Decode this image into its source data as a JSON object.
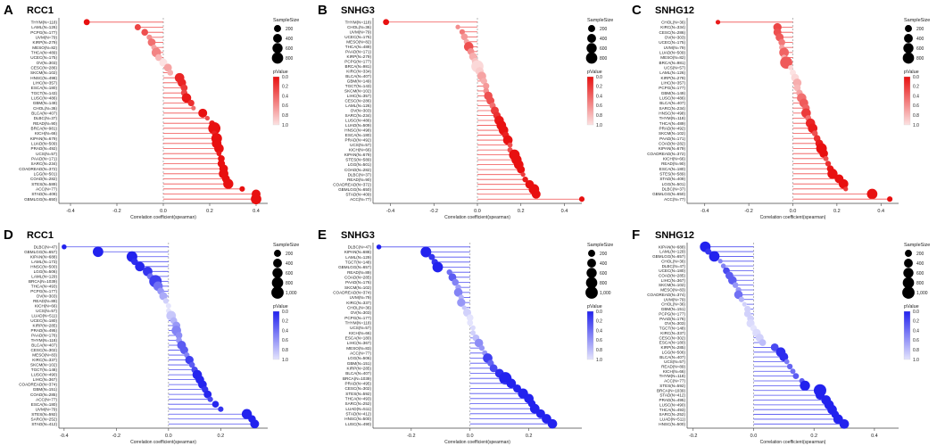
{
  "figure": {
    "description_title": "Lollipop correlation plots of RCC1, SNHG3 and SNHG12 across TCGA cancer types",
    "colors": {
      "red": "#e81010",
      "blue": "#2222ee",
      "stem_red": "#f05050",
      "stem_blue": "#5050f0"
    }
  },
  "chart_data": [
    {
      "panel_letter": "A",
      "title": "RCC1",
      "type": "lollipop",
      "color": "red",
      "xlabel": "Correlation coefficient(spearman)",
      "xlim": [
        -0.45,
        0.45
      ],
      "xticks": [
        -0.4,
        -0.2,
        0.0,
        0.2,
        0.4
      ],
      "xtick_labels": [
        "-0.4",
        "-0.2",
        "0.0",
        "0.2",
        "0.4"
      ],
      "legend_size_title": "SampleSize",
      "legend_size_labels": [
        "200",
        "400",
        "600",
        "800"
      ],
      "legend_p_title": "pValue",
      "legend_p_labels": [
        "0.0",
        "0.2",
        "0.4",
        "0.6",
        "0.8",
        "1.0"
      ],
      "labels": [
        "THYM(N=118)",
        "LAML(N=126)",
        "PCPG(N=177)",
        "UVM(N=79)",
        "KIRP(N=279)",
        "MESO(N=82)",
        "THCA(N=489)",
        "UCEC(N=175)",
        "OV(N=303)",
        "CESC(N=286)",
        "SKCM(N=102)",
        "HNSC(N=498)",
        "LIHC(N=357)",
        "ESCA(N=180)",
        "TGCT(N=143)",
        "LUSC(N=486)",
        "GBM(N=149)",
        "CHOL(N=36)",
        "BLCA(N=407)",
        "DLBC(N=37)",
        "READ(N=90)",
        "BRCA(N=981)",
        "KICH(N=66)",
        "KIPAN(N=679)",
        "LUAD(N=509)",
        "PRAD(N=492)",
        "UCS(N=57)",
        "PAAD(N=171)",
        "SARC(N=234)",
        "COADREAD(N=372)",
        "LGG(N=501)",
        "COAD(N=282)",
        "STES(N=589)",
        "ACC(N=77)",
        "STAD(N=409)",
        "GBMLGG(N=650)"
      ],
      "values": [
        -0.33,
        -0.11,
        -0.08,
        -0.06,
        -0.05,
        -0.04,
        -0.03,
        -0.02,
        0.0,
        0.02,
        0.03,
        0.07,
        0.08,
        0.09,
        0.09,
        0.1,
        0.12,
        0.13,
        0.17,
        0.19,
        0.21,
        0.22,
        0.22,
        0.23,
        0.23,
        0.24,
        0.24,
        0.25,
        0.25,
        0.26,
        0.26,
        0.27,
        0.28,
        0.34,
        0.4,
        0.4
      ],
      "sizes": [
        118,
        126,
        177,
        79,
        279,
        82,
        489,
        175,
        303,
        286,
        102,
        498,
        357,
        180,
        143,
        486,
        149,
        36,
        407,
        37,
        90,
        981,
        66,
        679,
        509,
        492,
        57,
        171,
        234,
        372,
        501,
        282,
        589,
        77,
        409,
        650
      ],
      "pvalues": [
        0.0,
        0.25,
        0.3,
        0.6,
        0.45,
        0.7,
        0.55,
        0.8,
        1.0,
        0.7,
        0.75,
        0.1,
        0.1,
        0.2,
        0.25,
        0.03,
        0.15,
        0.45,
        0.0,
        0.3,
        0.05,
        0.0,
        0.08,
        0.0,
        0.0,
        0.0,
        0.05,
        0.0,
        0.0,
        0.0,
        0.0,
        0.0,
        0.0,
        0.0,
        0.0,
        0.0
      ]
    },
    {
      "panel_letter": "B",
      "title": "SNHG3",
      "type": "lollipop",
      "color": "red",
      "xlabel": "Correlation coefficient(spearman)",
      "xlim": [
        -0.48,
        0.48
      ],
      "xticks": [
        -0.4,
        -0.2,
        0.0,
        0.2,
        0.4
      ],
      "xtick_labels": [
        "-0.4",
        "-0.2",
        "0.0",
        "0.2",
        "0.4"
      ],
      "legend_size_title": "SampleSize",
      "legend_size_labels": [
        "200",
        "400",
        "600",
        "800"
      ],
      "legend_p_title": "pValue",
      "legend_p_labels": [
        "0.0",
        "0.2",
        "0.4",
        "0.6",
        "0.8",
        "1.0"
      ],
      "labels": [
        "THYM(N=118)",
        "CHOL(N=36)",
        "UVM(N=79)",
        "UCEC(N=175)",
        "MESO(N=82)",
        "THCA(N=489)",
        "PAAD(N=171)",
        "KIRP(N=279)",
        "PCPG(N=177)",
        "BRCA(N=981)",
        "KIRC(N=334)",
        "BLCA(N=407)",
        "GBM(N=149)",
        "TGCT(N=143)",
        "SKCM(N=102)",
        "LIHC(N=357)",
        "CESC(N=286)",
        "LAML(N=126)",
        "OV(N=303)",
        "SARC(N=234)",
        "LUSC(N=486)",
        "LUAD(N=509)",
        "HNSC(N=498)",
        "ESCA(N=180)",
        "PRAD(N=492)",
        "UCS(N=57)",
        "KICH(N=66)",
        "KIPAN(N=679)",
        "STES(N=589)",
        "LGG(N=501)",
        "COAD(N=282)",
        "DLBC(N=37)",
        "READ(N=90)",
        "COADREAD(N=372)",
        "GBMLGG(N=650)",
        "STAD(N=409)",
        "ACC(N=77)"
      ],
      "values": [
        -0.42,
        -0.09,
        -0.07,
        -0.06,
        -0.05,
        -0.04,
        -0.03,
        -0.02,
        -0.01,
        0.0,
        0.01,
        0.02,
        0.03,
        0.04,
        0.04,
        0.05,
        0.06,
        0.07,
        0.08,
        0.09,
        0.1,
        0.11,
        0.12,
        0.13,
        0.14,
        0.15,
        0.15,
        0.17,
        0.18,
        0.19,
        0.2,
        0.21,
        0.22,
        0.24,
        0.26,
        0.27,
        0.48
      ],
      "sizes": [
        118,
        36,
        79,
        175,
        82,
        489,
        171,
        279,
        177,
        981,
        334,
        407,
        149,
        143,
        102,
        357,
        286,
        126,
        303,
        234,
        486,
        509,
        498,
        180,
        492,
        57,
        66,
        679,
        589,
        501,
        282,
        37,
        90,
        372,
        650,
        409,
        77
      ],
      "pvalues": [
        0.0,
        0.6,
        0.5,
        0.65,
        0.7,
        0.3,
        0.6,
        0.75,
        0.85,
        0.95,
        0.9,
        0.7,
        0.75,
        0.65,
        0.6,
        0.3,
        0.3,
        0.45,
        0.2,
        0.15,
        0.03,
        0.01,
        0.01,
        0.08,
        0.01,
        0.3,
        0.3,
        0.0,
        0.0,
        0.0,
        0.0,
        0.2,
        0.05,
        0.0,
        0.0,
        0.0,
        0.0
      ]
    },
    {
      "panel_letter": "C",
      "title": "SNHG12",
      "type": "lollipop",
      "color": "red",
      "xlabel": "Correlation coefficient(spearman)",
      "xlim": [
        -0.48,
        0.48
      ],
      "xticks": [
        -0.4,
        -0.2,
        0.0,
        0.2,
        0.4
      ],
      "xtick_labels": [
        "-0.4",
        "-0.2",
        "0.0",
        "0.2",
        "0.4"
      ],
      "legend_size_title": "SampleSize",
      "legend_size_labels": [
        "200",
        "400",
        "600",
        "800"
      ],
      "legend_p_title": "pValue",
      "legend_p_labels": [
        "0.0",
        "0.2",
        "0.4",
        "0.6",
        "0.8",
        "1.0"
      ],
      "labels": [
        "CHOL(N=36)",
        "KIRC(N=334)",
        "CESC(N=286)",
        "OV(N=303)",
        "UCEC(N=175)",
        "UVM(N=79)",
        "LUAD(N=509)",
        "MESO(N=82)",
        "BRCA(N=981)",
        "UCS(N=57)",
        "LAML(N=126)",
        "KIRP(N=279)",
        "LIHC(N=357)",
        "PCPG(N=177)",
        "GBM(N=149)",
        "LUSC(N=486)",
        "BLCA(N=407)",
        "SARC(N=234)",
        "HNSC(N=498)",
        "THYM(N=118)",
        "THCA(N=489)",
        "PRAD(N=492)",
        "SKCM(N=102)",
        "PAAD(N=171)",
        "COAD(N=282)",
        "KIPAN(N=679)",
        "COADREAD(N=372)",
        "KICH(N=66)",
        "READ(N=90)",
        "ESCA(N=180)",
        "STES(N=589)",
        "STAD(N=409)",
        "LGG(N=501)",
        "DLBC(N=37)",
        "GBMLGG(N=650)",
        "ACC(N=77)"
      ],
      "values": [
        -0.34,
        -0.07,
        -0.07,
        -0.06,
        -0.05,
        -0.05,
        -0.04,
        -0.04,
        -0.03,
        -0.01,
        0.0,
        0.01,
        0.02,
        0.02,
        0.03,
        0.04,
        0.05,
        0.06,
        0.06,
        0.07,
        0.08,
        0.09,
        0.1,
        0.11,
        0.12,
        0.13,
        0.14,
        0.15,
        0.16,
        0.17,
        0.18,
        0.21,
        0.23,
        0.24,
        0.36,
        0.44
      ],
      "sizes": [
        36,
        334,
        286,
        303,
        175,
        79,
        509,
        82,
        981,
        57,
        126,
        279,
        357,
        177,
        149,
        486,
        407,
        234,
        498,
        118,
        489,
        492,
        102,
        171,
        282,
        679,
        372,
        66,
        90,
        180,
        589,
        409,
        501,
        37,
        650,
        77
      ],
      "pvalues": [
        0.05,
        0.25,
        0.3,
        0.35,
        0.5,
        0.7,
        0.4,
        0.75,
        0.35,
        0.95,
        1.0,
        0.95,
        0.75,
        0.8,
        0.7,
        0.45,
        0.35,
        0.4,
        0.2,
        0.45,
        0.1,
        0.05,
        0.3,
        0.15,
        0.05,
        0.0,
        0.0,
        0.3,
        0.15,
        0.03,
        0.0,
        0.0,
        0.0,
        0.2,
        0.0,
        0.0
      ]
    },
    {
      "panel_letter": "D",
      "title": "RCC1",
      "type": "lollipop",
      "color": "blue",
      "xlabel": "Correlation coefficient(spearman)",
      "xlim": [
        -0.42,
        0.38
      ],
      "xticks": [
        -0.4,
        -0.2,
        0.0,
        0.2
      ],
      "xtick_labels": [
        "-0.4",
        "-0.2",
        "0.0",
        "0.2"
      ],
      "legend_size_title": "SampleSize",
      "legend_size_labels": [
        "200",
        "400",
        "600",
        "800",
        "1,000"
      ],
      "legend_p_title": "pValue",
      "legend_p_labels": [
        "0.0",
        "0.2",
        "0.4",
        "0.6",
        "0.8",
        "1.0"
      ],
      "labels": [
        "DLBC(N=47)",
        "GBMLGG(N=657)",
        "KIPAN(N=688)",
        "LAML(N=173)",
        "HNSC(N=500)",
        "LGG(N=506)",
        "LAML(N=129)",
        "BRCA(N=1039)",
        "THCA(N=493)",
        "PCPG(N=177)",
        "OV(N=303)",
        "READ(N=89)",
        "KICH(N=66)",
        "UCS(N=57)",
        "LUAD(N=511)",
        "UCEC(N=180)",
        "KIRP(N=285)",
        "PRAD(N=495)",
        "PAAD(N=176)",
        "THYM(N=118)",
        "BLCA(N=407)",
        "CESC(N=302)",
        "MESO(N=83)",
        "KIRC(N=337)",
        "SKCM(N=102)",
        "TGCT(N=148)",
        "LUSC(N=490)",
        "LIHC(N=367)",
        "COADREAD(N=374)",
        "GBM(N=151)",
        "COAD(N=285)",
        "ACC(N=77)",
        "ESCA(N=180)",
        "UVM(N=79)",
        "STES(N=592)",
        "SARC(N=252)",
        "STAD(N=412)"
      ],
      "values": [
        -0.4,
        -0.27,
        -0.14,
        -0.13,
        -0.11,
        -0.08,
        -0.07,
        -0.05,
        -0.04,
        -0.03,
        -0.02,
        -0.01,
        0.0,
        0.0,
        0.01,
        0.02,
        0.03,
        0.03,
        0.04,
        0.04,
        0.05,
        0.06,
        0.07,
        0.08,
        0.09,
        0.1,
        0.11,
        0.12,
        0.13,
        0.14,
        0.15,
        0.16,
        0.18,
        0.2,
        0.3,
        0.32,
        0.33
      ],
      "sizes": [
        47,
        657,
        688,
        173,
        500,
        506,
        129,
        1039,
        493,
        177,
        303,
        89,
        66,
        57,
        511,
        180,
        285,
        495,
        176,
        118,
        407,
        302,
        83,
        337,
        102,
        148,
        490,
        367,
        374,
        151,
        285,
        77,
        180,
        79,
        592,
        252,
        412
      ],
      "pvalues": [
        0.0,
        0.0,
        0.0,
        0.05,
        0.02,
        0.1,
        0.4,
        0.15,
        0.4,
        0.6,
        0.7,
        0.9,
        1.0,
        1.0,
        0.85,
        0.75,
        0.6,
        0.5,
        0.55,
        0.6,
        0.3,
        0.3,
        0.5,
        0.15,
        0.3,
        0.2,
        0.02,
        0.02,
        0.01,
        0.08,
        0.02,
        0.2,
        0.02,
        0.1,
        0.0,
        0.0,
        0.0
      ]
    },
    {
      "panel_letter": "E",
      "title": "SNHG3",
      "type": "lollipop",
      "color": "blue",
      "xlabel": "Correlation coefficient(spearman)",
      "xlim": [
        -0.33,
        0.38
      ],
      "xticks": [
        -0.2,
        0.0,
        0.2
      ],
      "xtick_labels": [
        "-0.2",
        "0.0",
        "0.2"
      ],
      "legend_size_title": "SampleSize",
      "legend_size_labels": [
        "200",
        "400",
        "600",
        "800",
        "1,000"
      ],
      "legend_p_title": "pValue",
      "legend_p_labels": [
        "0.0",
        "0.2",
        "0.4",
        "0.6",
        "0.8",
        "1.0"
      ],
      "labels": [
        "DLBC(N=47)",
        "KIPAN(N=688)",
        "LAML(N=129)",
        "TGCT(N=148)",
        "GBMLGG(N=657)",
        "READ(N=89)",
        "COAD(N=285)",
        "PAAD(N=176)",
        "SKCM(N=102)",
        "COADREAD(N=374)",
        "UVM(N=79)",
        "KIRC(N=337)",
        "CHOL(N=36)",
        "OV(N=303)",
        "PCPG(N=177)",
        "THYM(N=118)",
        "UCS(N=57)",
        "KICH(N=66)",
        "ESCA(N=180)",
        "LIHC(N=367)",
        "MESO(N=83)",
        "ACC(N=77)",
        "LGG(N=506)",
        "GBM(N=151)",
        "KIRP(N=285)",
        "BLCA(N=407)",
        "BRCA(N=1039)",
        "PRAD(N=495)",
        "CESC(N=302)",
        "STES(N=592)",
        "THCA(N=493)",
        "SARC(N=252)",
        "LUAD(N=511)",
        "STAD(N=412)",
        "HNSC(N=500)",
        "LUSC(N=490)"
      ],
      "values": [
        -0.31,
        -0.15,
        -0.13,
        -0.12,
        -0.11,
        -0.07,
        -0.06,
        -0.05,
        -0.04,
        -0.04,
        -0.03,
        -0.03,
        -0.02,
        -0.01,
        0.0,
        0.0,
        0.01,
        0.01,
        0.02,
        0.03,
        0.04,
        0.05,
        0.06,
        0.07,
        0.08,
        0.1,
        0.12,
        0.14,
        0.16,
        0.18,
        0.2,
        0.21,
        0.22,
        0.24,
        0.26,
        0.28
      ],
      "sizes": [
        47,
        688,
        129,
        148,
        657,
        89,
        285,
        176,
        102,
        374,
        79,
        337,
        36,
        303,
        177,
        118,
        57,
        66,
        180,
        367,
        83,
        77,
        506,
        151,
        285,
        407,
        1039,
        495,
        302,
        592,
        493,
        252,
        511,
        412,
        500,
        490
      ],
      "pvalues": [
        0.0,
        0.0,
        0.1,
        0.1,
        0.0,
        0.4,
        0.3,
        0.5,
        0.65,
        0.5,
        0.75,
        0.6,
        0.85,
        0.9,
        1.0,
        1.0,
        0.95,
        0.9,
        0.8,
        0.55,
        0.6,
        0.6,
        0.15,
        0.35,
        0.2,
        0.05,
        0.0,
        0.0,
        0.0,
        0.0,
        0.0,
        0.0,
        0.0,
        0.0,
        0.0,
        0.0
      ]
    },
    {
      "panel_letter": "F",
      "title": "SNHG12",
      "type": "lollipop",
      "color": "blue",
      "xlabel": "Correlation coefficient(spearman)",
      "xlim": [
        -0.22,
        0.48
      ],
      "xticks": [
        -0.2,
        0.0,
        0.2,
        0.4
      ],
      "xtick_labels": [
        "-0.2",
        "0.0",
        "0.2",
        "0.4"
      ],
      "legend_size_title": "SampleSize",
      "legend_size_labels": [
        "200",
        "400",
        "600",
        "800",
        "1,000"
      ],
      "legend_p_title": "pValue",
      "legend_p_labels": [
        "0.0",
        "0.2",
        "0.4",
        "0.6",
        "0.8",
        "1.0"
      ],
      "labels": [
        "KIPAN(N=688)",
        "LAML(N=129)",
        "GBMLGG(N=657)",
        "CHOL(N=36)",
        "DLBC(N=47)",
        "UCEC(N=180)",
        "COAD(N=285)",
        "LIHC(N=367)",
        "SKCM(N=102)",
        "MESO(N=83)",
        "COADREAD(N=374)",
        "UVM(N=79)",
        "CHOL(N=36)",
        "GBM(N=151)",
        "PCPG(N=177)",
        "PAAD(N=176)",
        "OV(N=303)",
        "TGCT(N=148)",
        "KIRC(N=337)",
        "CESC(N=302)",
        "ESCA(N=180)",
        "KIRP(N=285)",
        "LGG(N=506)",
        "BLCA(N=407)",
        "UCS(N=57)",
        "READ(N=89)",
        "KICH(N=66)",
        "THYM(N=118)",
        "ACC(N=77)",
        "STES(N=592)",
        "BRCA(N=1039)",
        "STAD(N=412)",
        "PRAD(N=495)",
        "LUSC(N=490)",
        "THCA(N=493)",
        "SARC(N=252)",
        "LUAD(N=511)",
        "HNSC(N=500)"
      ],
      "values": [
        -0.16,
        -0.15,
        -0.13,
        -0.11,
        -0.1,
        -0.09,
        -0.08,
        -0.07,
        -0.06,
        -0.05,
        -0.05,
        -0.04,
        -0.03,
        -0.02,
        -0.02,
        -0.01,
        -0.01,
        0.0,
        0.01,
        0.02,
        0.03,
        0.07,
        0.09,
        0.1,
        0.11,
        0.12,
        0.13,
        0.14,
        0.16,
        0.17,
        0.22,
        0.22,
        0.24,
        0.25,
        0.26,
        0.27,
        0.28,
        0.3
      ],
      "sizes": [
        688,
        129,
        657,
        36,
        47,
        180,
        285,
        367,
        102,
        83,
        374,
        79,
        36,
        151,
        177,
        176,
        303,
        148,
        337,
        302,
        180,
        285,
        506,
        407,
        57,
        89,
        66,
        118,
        77,
        592,
        1039,
        412,
        495,
        490,
        493,
        252,
        511,
        500
      ],
      "pvalues": [
        0.0,
        0.1,
        0.0,
        0.5,
        0.5,
        0.2,
        0.3,
        0.3,
        0.6,
        0.6,
        0.4,
        0.75,
        0.9,
        0.9,
        0.9,
        0.9,
        0.95,
        1.0,
        0.95,
        0.9,
        0.8,
        0.2,
        0.05,
        0.05,
        0.45,
        0.35,
        0.4,
        0.3,
        0.3,
        0.0,
        0.0,
        0.0,
        0.0,
        0.0,
        0.0,
        0.0,
        0.0,
        0.0
      ]
    }
  ]
}
